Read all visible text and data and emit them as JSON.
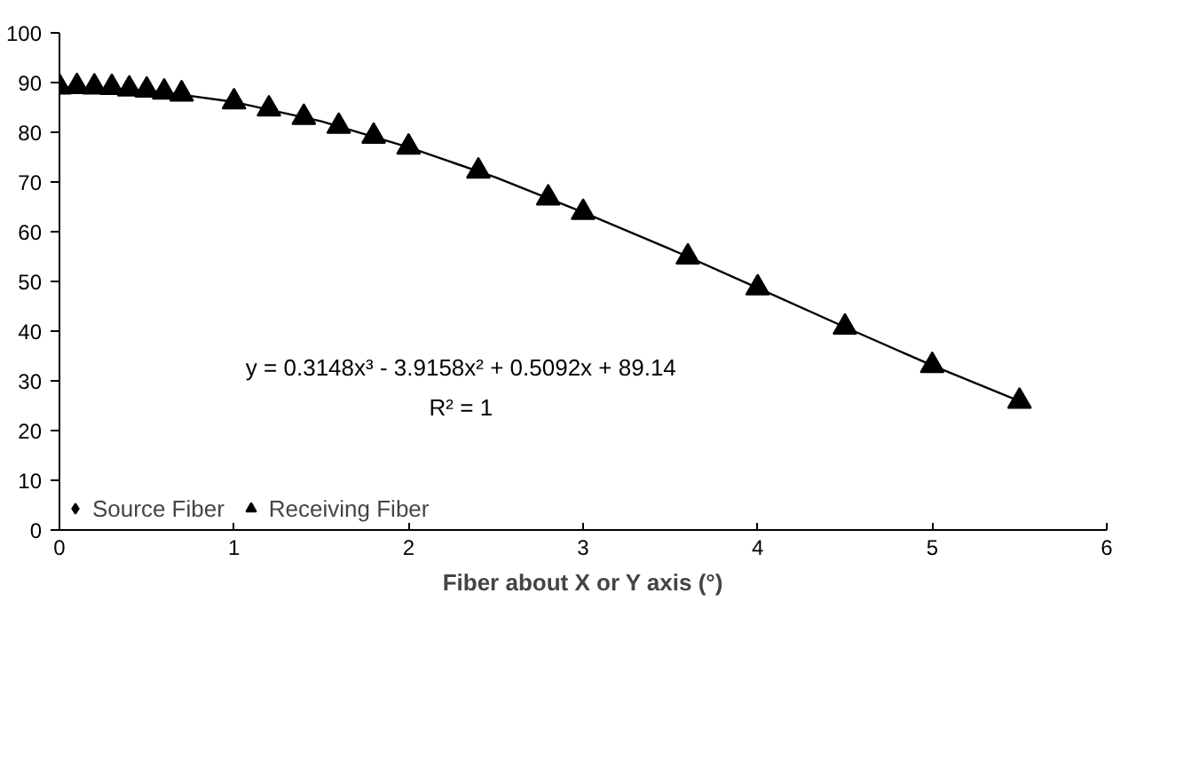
{
  "chart_data": {
    "type": "scatter",
    "xlabel": "Fiber about X or Y axis (°)",
    "x": [
      0,
      0.1,
      0.2,
      0.3,
      0.4,
      0.5,
      0.6,
      0.7,
      1.0,
      1.2,
      1.4,
      1.6,
      1.8,
      2.0,
      2.4,
      2.8,
      3.0,
      3.6,
      4.0,
      4.5,
      5.0,
      5.5
    ],
    "series": [
      {
        "name": "Source Fiber",
        "marker": "diamond",
        "color": "#000000",
        "values": [
          null,
          null,
          null,
          null,
          null,
          null,
          null,
          null,
          null,
          null,
          null,
          null,
          null,
          null,
          null,
          null,
          null,
          null,
          null,
          null,
          null,
          null
        ]
      },
      {
        "name": "Receiving Fiber",
        "marker": "triangle",
        "color": "#000000",
        "values": [
          89.1,
          89.2,
          89.1,
          89.0,
          88.7,
          88.5,
          88.1,
          87.7,
          86.1,
          84.7,
          83.0,
          81.2,
          79.2,
          77.0,
          72.2,
          66.8,
          63.9,
          54.9,
          48.7,
          40.8,
          33.1,
          25.9
        ]
      },
      {
        "type": "line",
        "color": "#000000",
        "line_style": "solid",
        "x": [
          0,
          0.5,
          1.0,
          1.5,
          2.0,
          2.5,
          3.0,
          3.5,
          4.0,
          4.5,
          5.0,
          5.5
        ],
        "values": [
          89.1,
          88.5,
          86.1,
          82.2,
          77.0,
          70.9,
          63.9,
          56.5,
          48.7,
          40.8,
          33.1,
          25.9
        ]
      }
    ],
    "annotations": [
      "y = 0.3148x³ - 3.9158x² + 0.5092x + 89.14",
      "R² = 1"
    ],
    "xlim": [
      0,
      6
    ],
    "ylim": [
      0,
      100
    ],
    "xticks": [
      0,
      1,
      2,
      3,
      4,
      5,
      6
    ],
    "yticks": [
      0,
      10,
      20,
      30,
      40,
      50,
      60,
      70,
      80,
      90,
      100
    ],
    "grid": false,
    "legend": "bottom left"
  }
}
